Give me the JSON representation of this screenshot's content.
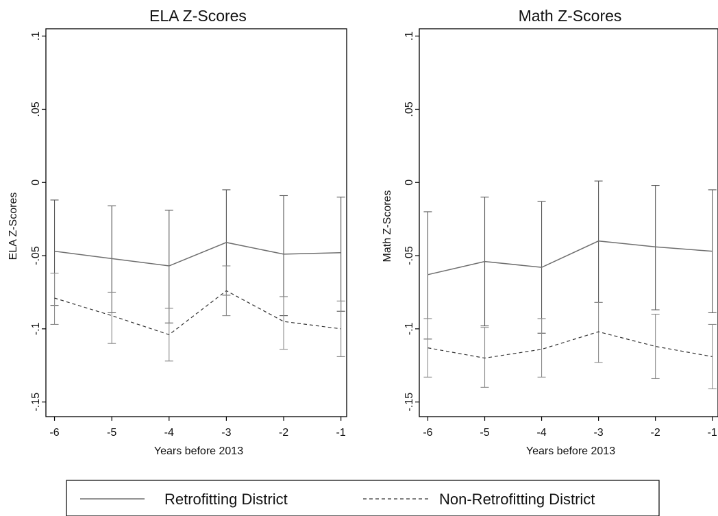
{
  "chart_data": [
    {
      "type": "line",
      "title": "ELA Z-Scores",
      "xlabel": "Years before 2013",
      "ylabel": "ELA Z-Scores",
      "x": [
        -6,
        -5,
        -4,
        -3,
        -2,
        -1
      ],
      "x_tick_labels": [
        "-6",
        "-5",
        "-4",
        "-3",
        "-2",
        "-1"
      ],
      "y_ticks": [
        0.1,
        0.05,
        0,
        -0.05,
        -0.1,
        -0.15
      ],
      "y_tick_labels": [
        ".1",
        ".05",
        "0",
        "-.05",
        "-.1",
        "-.15"
      ],
      "ylim": [
        -0.16,
        0.105
      ],
      "xlim": [
        -6.15,
        -0.9
      ],
      "series": [
        {
          "name": "Retrofitting District",
          "style": "solid",
          "color": "#6e6e6e",
          "values": [
            -0.047,
            -0.052,
            -0.057,
            -0.041,
            -0.049,
            -0.048
          ],
          "ci_low": [
            -0.084,
            -0.089,
            -0.096,
            -0.077,
            -0.091,
            -0.088
          ],
          "ci_high": [
            -0.012,
            -0.016,
            -0.019,
            -0.005,
            -0.009,
            -0.01
          ]
        },
        {
          "name": "Non-Retrofitting District",
          "style": "dashed",
          "color": "#333333",
          "values": [
            -0.079,
            -0.091,
            -0.104,
            -0.074,
            -0.095,
            -0.1
          ],
          "ci_low": [
            -0.097,
            -0.11,
            -0.122,
            -0.091,
            -0.114,
            -0.119
          ],
          "ci_high": [
            -0.062,
            -0.075,
            -0.086,
            -0.057,
            -0.078,
            -0.081
          ]
        }
      ]
    },
    {
      "type": "line",
      "title": "Math Z-Scores",
      "xlabel": "Years before 2013",
      "ylabel": "Math Z-Scores",
      "x": [
        -6,
        -5,
        -4,
        -3,
        -2,
        -1
      ],
      "x_tick_labels": [
        "-6",
        "-5",
        "-4",
        "-3",
        "-2",
        "-1"
      ],
      "y_ticks": [
        0.1,
        0.05,
        0,
        -0.05,
        -0.1,
        -0.15
      ],
      "y_tick_labels": [
        ".1",
        ".05",
        "0",
        "-.05",
        "-.1",
        "-.15"
      ],
      "ylim": [
        -0.16,
        0.105
      ],
      "xlim": [
        -6.15,
        -0.9
      ],
      "series": [
        {
          "name": "Retrofitting District",
          "style": "solid",
          "color": "#6e6e6e",
          "values": [
            -0.063,
            -0.054,
            -0.058,
            -0.04,
            -0.044,
            -0.047
          ],
          "ci_low": [
            -0.107,
            -0.098,
            -0.103,
            -0.082,
            -0.087,
            -0.089
          ],
          "ci_high": [
            -0.02,
            -0.01,
            -0.013,
            0.001,
            -0.002,
            -0.005
          ]
        },
        {
          "name": "Non-Retrofitting District",
          "style": "dashed",
          "color": "#333333",
          "values": [
            -0.113,
            -0.12,
            -0.114,
            -0.102,
            -0.112,
            -0.119
          ],
          "ci_low": [
            -0.133,
            -0.14,
            -0.133,
            -0.123,
            -0.134,
            -0.141
          ],
          "ci_high": [
            -0.093,
            -0.099,
            -0.093,
            -0.082,
            -0.09,
            -0.097
          ]
        }
      ]
    }
  ],
  "legend": {
    "items": [
      {
        "label": "Retrofitting District",
        "style": "solid"
      },
      {
        "label": "Non-Retrofitting District",
        "style": "dashed"
      }
    ]
  }
}
